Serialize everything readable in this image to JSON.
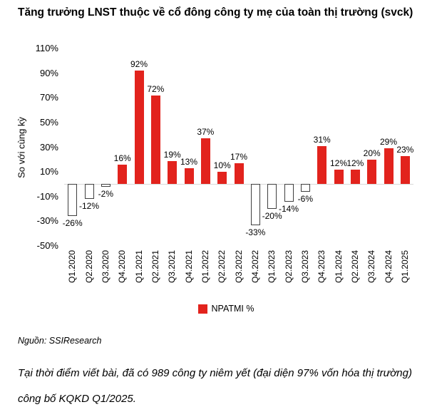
{
  "title": "Tăng trưởng LNST thuộc về cổ đông công ty mẹ của toàn thị trường (svck)",
  "chart_data": {
    "type": "bar",
    "title": "Tăng trưởng LNST thuộc về cổ đông công ty mẹ của toàn thị trường (svck)",
    "xlabel": "",
    "ylabel": "So với cùng kỳ",
    "ylim": [
      -50,
      110
    ],
    "y_ticks": [
      110,
      90,
      70,
      50,
      30,
      10,
      -10,
      -30,
      -50
    ],
    "y_tick_suffix": "%",
    "grid": false,
    "legend_position": "bottom",
    "series_name": "NPATMI %",
    "categories": [
      "Q1.2020",
      "Q2.2020",
      "Q3.2020",
      "Q4.2020",
      "Q1.2021",
      "Q2.2021",
      "Q3.2021",
      "Q4.2021",
      "Q1.2022",
      "Q2.2022",
      "Q3.2022",
      "Q4.2022",
      "Q1.2023",
      "Q2.2023",
      "Q3.2023",
      "Q4.2023",
      "Q1.2024",
      "Q2.2024",
      "Q3.2024",
      "Q4.2024",
      "Q1.2025"
    ],
    "values": [
      -26,
      -12,
      -2,
      16,
      92,
      72,
      19,
      13,
      37,
      10,
      17,
      -33,
      -20,
      -14,
      -6,
      31,
      12,
      12,
      20,
      29,
      23
    ],
    "value_label_suffix": "%",
    "colors": {
      "positive_fill": "#e2231d",
      "negative_fill": "#ffffff",
      "negative_border": "#3f3f3f",
      "axis_line": "#d9d9d9",
      "text": "#000000"
    }
  },
  "legend": {
    "label": "NPATMI %",
    "swatch_color": "#e2231d"
  },
  "source": "Nguồn: SSIResearch",
  "footnote": "Tại thời điểm viết bài, đã có 989 công ty niêm yết (đại diện 97% vốn hóa thị trường) công bố KQKD Q1/2025."
}
